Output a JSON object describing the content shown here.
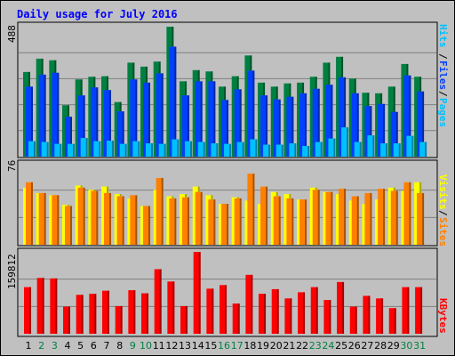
{
  "chart_data": [
    {
      "type": "bar",
      "title": "Daily usage for July 2016",
      "ymax_label": "488",
      "ylim": [
        0,
        488
      ],
      "categories": [
        "1",
        "2",
        "3",
        "4",
        "5",
        "6",
        "7",
        "8",
        "9",
        "10",
        "11",
        "12",
        "13",
        "14",
        "15",
        "16",
        "17",
        "18",
        "19",
        "20",
        "21",
        "22",
        "23",
        "24",
        "25",
        "26",
        "27",
        "28",
        "29",
        "30",
        "31"
      ],
      "weekend_days": [
        "2",
        "3",
        "9",
        "10",
        "16",
        "17",
        "23",
        "24",
        "30",
        "31"
      ],
      "legend": [
        "Pages",
        "/",
        "Files",
        "/",
        "Hits"
      ],
      "series": [
        {
          "name": "Hits",
          "color": "#008040",
          "values": [
            318,
            368,
            362,
            193,
            290,
            300,
            302,
            205,
            353,
            338,
            357,
            488,
            283,
            325,
            320,
            263,
            302,
            380,
            278,
            263,
            275,
            278,
            300,
            353,
            375,
            293,
            240,
            238,
            263,
            348,
            300
          ]
        },
        {
          "name": "Files",
          "color": "#0040ff",
          "values": [
            263,
            308,
            315,
            150,
            230,
            260,
            250,
            170,
            290,
            278,
            313,
            413,
            230,
            283,
            283,
            213,
            253,
            323,
            230,
            215,
            225,
            238,
            255,
            270,
            298,
            238,
            190,
            198,
            168,
            305,
            245
          ]
        },
        {
          "name": "Pages",
          "color": "#00c0ff",
          "values": [
            58,
            55,
            48,
            48,
            70,
            58,
            60,
            48,
            58,
            50,
            48,
            65,
            58,
            55,
            50,
            48,
            55,
            65,
            45,
            45,
            50,
            40,
            55,
            68,
            110,
            55,
            80,
            50,
            50,
            78,
            55
          ]
        }
      ]
    },
    {
      "type": "bar",
      "ymax_label": "76",
      "ylim": [
        0,
        76
      ],
      "legend": [
        "Sites",
        "/",
        "Visits"
      ],
      "series": [
        {
          "name": "Visits",
          "color": "#ffff00",
          "values": [
            53,
            48,
            46,
            37,
            55,
            51,
            54,
            47,
            43,
            36,
            51,
            45,
            47,
            54,
            46,
            38,
            44,
            41,
            38,
            49,
            47,
            42,
            53,
            49,
            47,
            41,
            38,
            42,
            53,
            50,
            58
          ]
        },
        {
          "name": "Sites",
          "color": "#ff8000",
          "values": [
            58,
            48,
            46,
            36,
            53,
            50,
            48,
            45,
            46,
            36,
            62,
            43,
            44,
            49,
            42,
            38,
            43,
            66,
            54,
            45,
            43,
            42,
            51,
            49,
            52,
            45,
            48,
            52,
            50,
            58,
            48
          ]
        }
      ]
    },
    {
      "type": "bar",
      "ymax_label": "159812",
      "ylim": [
        0,
        159812
      ],
      "legend": [
        "KBytes"
      ],
      "series": [
        {
          "name": "KBytes",
          "color": "#ff0000",
          "values": [
            91000,
            109000,
            108000,
            53000,
            76000,
            78000,
            84000,
            54000,
            85000,
            79000,
            126000,
            102000,
            54000,
            159812,
            88000,
            95000,
            59000,
            115000,
            78000,
            87000,
            69000,
            81000,
            91000,
            66000,
            101000,
            53000,
            74000,
            69000,
            50000,
            91000,
            91000
          ]
        }
      ]
    }
  ]
}
